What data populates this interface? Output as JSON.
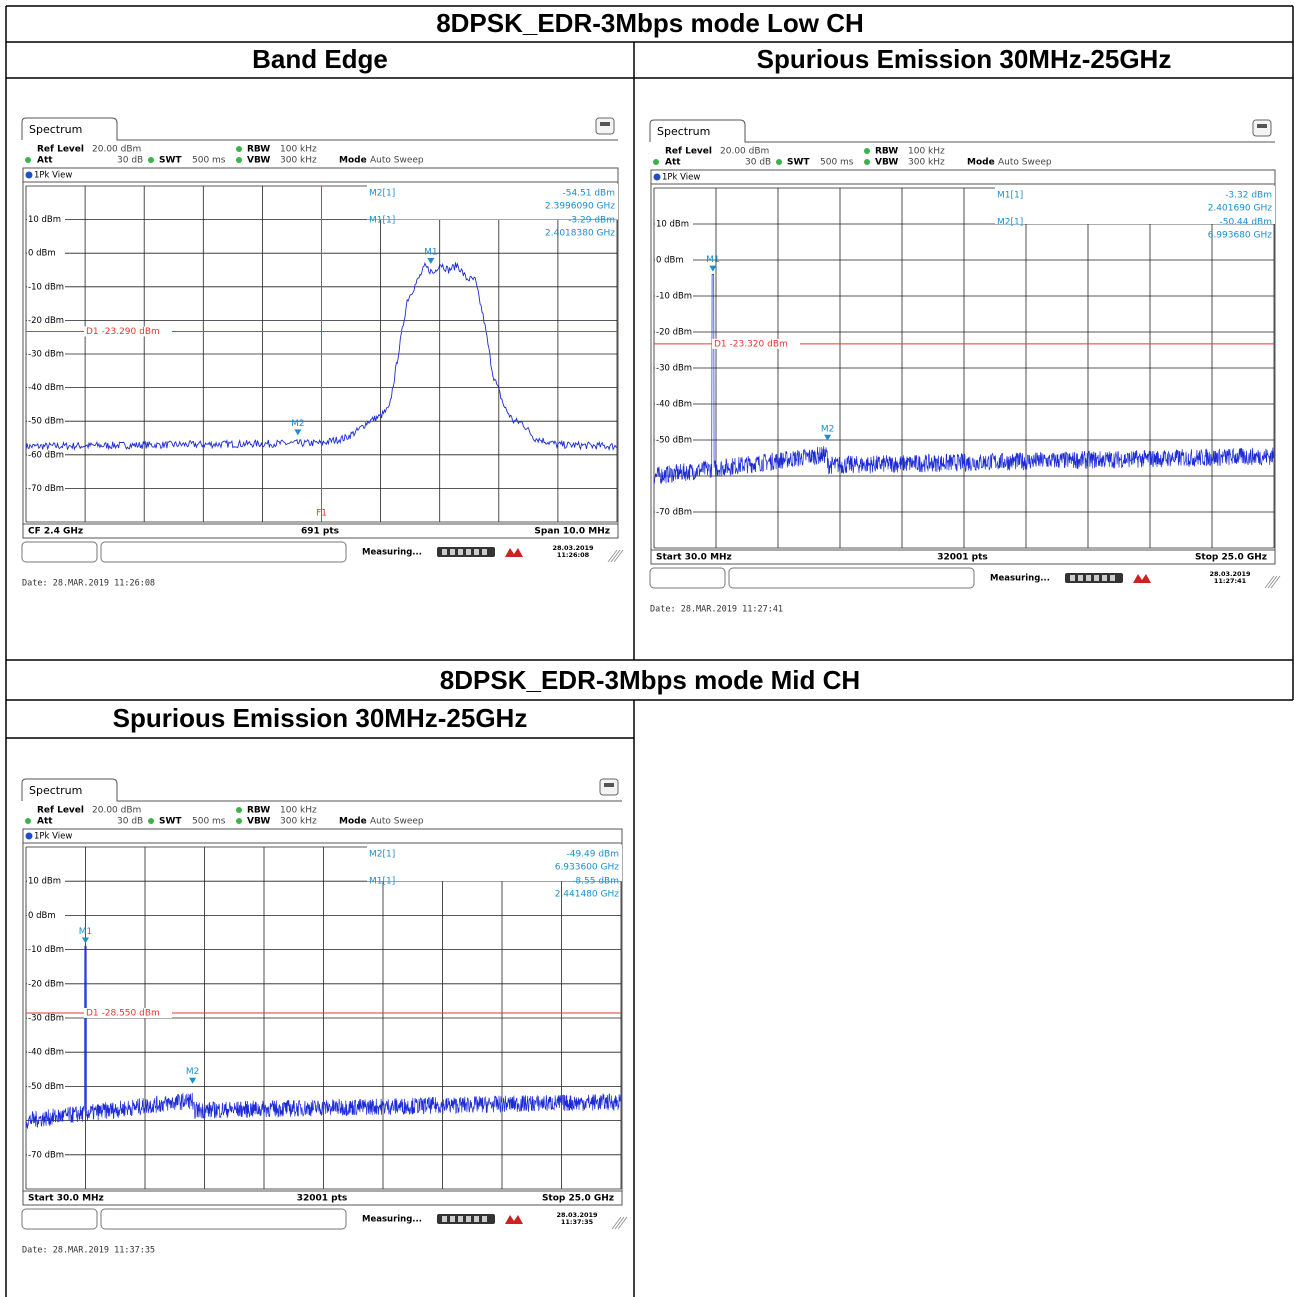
{
  "sections": [
    {
      "title": "8DPSK_EDR-3Mbps mode Low CH",
      "plots": [
        {
          "heading": "Band Edge",
          "screen": {
            "tab": "Spectrum",
            "ref_level_label": "Ref Level",
            "ref_level": "20.00 dBm",
            "att_label": "Att",
            "att": "30 dB",
            "swt_label": "SWT",
            "swt": "500 ms",
            "rbw_label": "RBW",
            "rbw": "100 kHz",
            "vbw_label": "VBW",
            "vbw": "300 kHz",
            "mode_label": "Mode",
            "mode": "Auto Sweep",
            "view": "1Pk View",
            "readouts": [
              {
                "name": "M2[1]",
                "level": "-54.51 dBm",
                "freq": "2.3996090 GHz"
              },
              {
                "name": "M1[1]",
                "level": "-3.29 dBm",
                "freq": "2.4018380 GHz"
              }
            ],
            "y_labels": [
              "10 dBm",
              "0 dBm",
              "-10 dBm",
              "-20 dBm",
              "-30 dBm",
              "-40 dBm",
              "-50 dBm",
              "-60 dBm",
              "-70 dBm"
            ],
            "display_line": "D1 -23.290 dBm",
            "frequency_line": "F1",
            "markers": [
              "M1",
              "M2"
            ],
            "footer": [
              "CF 2.4 GHz",
              "691 pts",
              "Span 10.0 MHz"
            ],
            "status": "Measuring...",
            "stamp_date": "28.03.2019",
            "stamp_time": "11:26:08",
            "date_line": "Date: 28.MAR.2019  11:26:08"
          }
        },
        {
          "heading": "Spurious Emission 30MHz-25GHz",
          "screen": {
            "tab": "Spectrum",
            "ref_level_label": "Ref Level",
            "ref_level": "20.00 dBm",
            "att_label": "Att",
            "att": "30 dB",
            "swt_label": "SWT",
            "swt": "500 ms",
            "rbw_label": "RBW",
            "rbw": "100 kHz",
            "vbw_label": "VBW",
            "vbw": "300 kHz",
            "mode_label": "Mode",
            "mode": "Auto Sweep",
            "view": "1Pk View",
            "readouts": [
              {
                "name": "M1[1]",
                "level": "-3.32 dBm",
                "freq": "2.401690 GHz"
              },
              {
                "name": "M2[1]",
                "level": "-50.44 dBm",
                "freq": "6.993680 GHz"
              }
            ],
            "y_labels": [
              "10 dBm",
              "0 dBm",
              "-10 dBm",
              "-20 dBm",
              "-30 dBm",
              "-40 dBm",
              "-50 dBm",
              null,
              "-70 dBm"
            ],
            "display_line": "D1 -23.320 dBm",
            "markers": [
              "M1",
              "M2"
            ],
            "footer": [
              "Start 30.0 MHz",
              "32001 pts",
              "Stop 25.0 GHz"
            ],
            "status": "Measuring...",
            "stamp_date": "28.03.2019",
            "stamp_time": "11:27:41",
            "date_line": "Date: 28.MAR.2019  11:27:41"
          }
        }
      ]
    },
    {
      "title": "8DPSK_EDR-3Mbps mode Mid CH",
      "plots": [
        {
          "heading": "Spurious Emission 30MHz-25GHz",
          "screen": {
            "tab": "Spectrum",
            "ref_level_label": "Ref Level",
            "ref_level": "20.00 dBm",
            "att_label": "Att",
            "att": "30 dB",
            "swt_label": "SWT",
            "swt": "500 ms",
            "rbw_label": "RBW",
            "rbw": "100 kHz",
            "vbw_label": "VBW",
            "vbw": "300 kHz",
            "mode_label": "Mode",
            "mode": "Auto Sweep",
            "view": "1Pk View",
            "readouts": [
              {
                "name": "M2[1]",
                "level": "-49.49 dBm",
                "freq": "6.933600 GHz"
              },
              {
                "name": "M1[1]",
                "level": "-8.55 dBm",
                "freq": "2.441480 GHz"
              }
            ],
            "y_labels": [
              "10 dBm",
              "0 dBm",
              "-10 dBm",
              "-20 dBm",
              "-30 dBm",
              "-40 dBm",
              "-50 dBm",
              null,
              "-70 dBm"
            ],
            "display_line": "D1 -28.550 dBm",
            "markers": [
              "M1",
              "M2"
            ],
            "footer": [
              "Start 30.0 MHz",
              "32001 pts",
              "Stop 25.0 GHz"
            ],
            "status": "Measuring...",
            "stamp_date": "28.03.2019",
            "stamp_time": "11:37:35",
            "date_line": "Date: 28.MAR.2019  11:37:35"
          }
        }
      ]
    }
  ]
}
